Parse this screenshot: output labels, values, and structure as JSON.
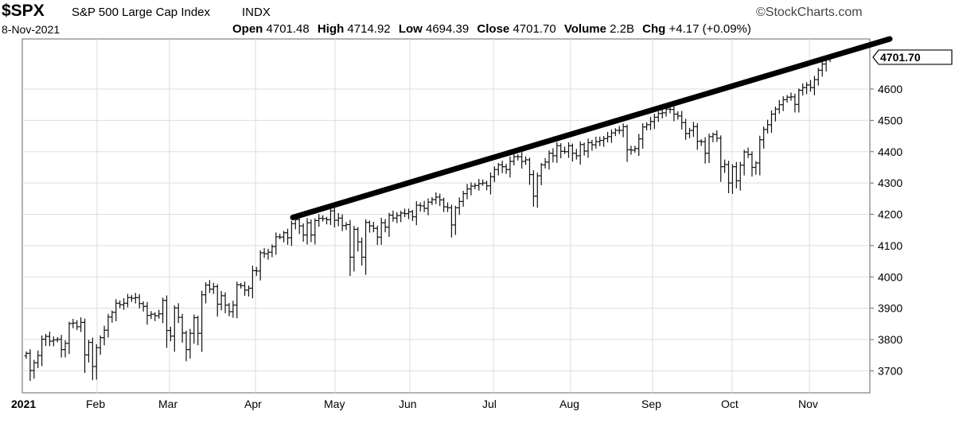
{
  "header": {
    "symbol": "$SPX",
    "name": "S&P 500 Large Cap Index",
    "exchange": "INDX",
    "logo": "©StockCharts.com",
    "date": "8-Nov-2021",
    "open_label": "Open",
    "open": "4701.48",
    "high_label": "High",
    "high": "4714.92",
    "low_label": "Low",
    "low": "4694.39",
    "close_label": "Close",
    "close": "4701.70",
    "volume_label": "Volume",
    "volume": "2.2B",
    "chg_label": "Chg",
    "chg": "+4.17 (+0.09%)"
  },
  "chart_data": {
    "type": "ohlc",
    "yticks": [
      "3700",
      "3800",
      "3900",
      "4000",
      "4100",
      "4200",
      "4300",
      "4400",
      "4500",
      "4600"
    ],
    "xticks": [
      "2021",
      "Feb",
      "Mar",
      "Apr",
      "May",
      "Jun",
      "Jul",
      "Aug",
      "Sep",
      "Oct",
      "Nov"
    ],
    "ylim": [
      3630,
      4760
    ],
    "last_price_label": "4701.70",
    "last_price": 4701.7,
    "closes": [
      3756,
      3701,
      3726,
      3749,
      3801,
      3810,
      3795,
      3799,
      3801,
      3768,
      3788,
      3851,
      3853,
      3841,
      3855,
      3751,
      3791,
      3714,
      3774,
      3806,
      3830,
      3872,
      3887,
      3916,
      3911,
      3916,
      3934,
      3932,
      3934,
      3915,
      3906,
      3877,
      3881,
      3876,
      3882,
      3925,
      3829,
      3811,
      3901,
      3871,
      3821,
      3768,
      3820,
      3870,
      3820,
      3943,
      3974,
      3961,
      3969,
      3913,
      3940,
      3910,
      3889,
      3910,
      3975,
      3972,
      3958,
      3964,
      4020,
      4019,
      4077,
      4074,
      4079,
      4097,
      4128,
      4127,
      4141,
      4125,
      4170,
      4183,
      4163,
      4134,
      4173,
      4134,
      4180,
      4187,
      4186,
      4183,
      4211,
      4181,
      4188,
      4164,
      4167,
      4063,
      4152,
      4112,
      4063,
      4174,
      4163,
      4155,
      4127,
      4173,
      4159,
      4197,
      4188,
      4196,
      4204,
      4202,
      4208,
      4192,
      4229,
      4227,
      4219,
      4239,
      4247,
      4255,
      4246,
      4224,
      4221,
      4166,
      4221,
      4241,
      4266,
      4281,
      4290,
      4292,
      4298,
      4300,
      4291,
      4320,
      4343,
      4358,
      4352,
      4343,
      4369,
      4384,
      4384,
      4369,
      4374,
      4327,
      4258,
      4323,
      4358,
      4367,
      4395,
      4387,
      4419,
      4401,
      4400,
      4419,
      4395,
      4387,
      4423,
      4402,
      4429,
      4422,
      4432,
      4436,
      4442,
      4448,
      4460,
      4468,
      4468,
      4480,
      4406,
      4405,
      4410,
      4441,
      4479,
      4486,
      4496,
      4510,
      4522,
      4524,
      4536,
      4535,
      4520,
      4514,
      4493,
      4458,
      4468,
      4480,
      4433,
      4432,
      4395,
      4448,
      4455,
      4443,
      4352,
      4359,
      4300,
      4352,
      4307,
      4357,
      4399,
      4391,
      4350,
      4364,
      4438,
      4471,
      4486,
      4520,
      4536,
      4550,
      4566,
      4574,
      4575,
      4551,
      4596,
      4605,
      4613,
      4605,
      4630,
      4660,
      4680,
      4697,
      4701
    ],
    "trendline": {
      "start": 4190,
      "end": 4760
    }
  }
}
